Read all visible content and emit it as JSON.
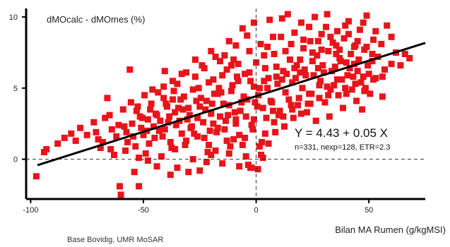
{
  "chart_data": {
    "type": "scatter",
    "ylabel": "dMOcalc - dMOmes (%)",
    "xlabel": "Bilan MA Rumen (g/kgMSI)",
    "equation": "Y = 4.43 + 0.05 X",
    "stats": "n=331, nexp=128, ETR=2.3",
    "source": "Base Bovidig, UMR MoSAR",
    "xlim": [
      -102,
      75
    ],
    "ylim": [
      -2.8,
      10.6
    ],
    "x_ticks": [
      -100,
      -50,
      0,
      50
    ],
    "x_tick_labels": [
      "-100",
      "-50",
      "0",
      "50"
    ],
    "y_ticks": [
      0,
      5,
      10
    ],
    "y_tick_labels": [
      "0",
      "5",
      "10"
    ],
    "reference_lines": {
      "x": 0,
      "y": 0
    },
    "regression": {
      "intercept": 4.43,
      "slope": 0.05,
      "x_range": [
        -97,
        75
      ]
    },
    "colors": {
      "points": "#e8141b",
      "regression": "#000000",
      "axes": "#000000"
    },
    "point_count_shown": 331,
    "points": [
      [
        -97.5,
        -1.2
      ],
      [
        -94,
        0.5
      ],
      [
        -93,
        0.7
      ],
      [
        -70,
        1.4
      ],
      [
        -66,
        4.3
      ],
      [
        -64,
        2.1
      ],
      [
        -62,
        1.6
      ],
      [
        -60,
        -2.5
      ],
      [
        -58,
        0.6
      ],
      [
        -57,
        1.2
      ],
      [
        -56,
        6.3
      ],
      [
        -55,
        2.5
      ],
      [
        -54,
        -0.9
      ],
      [
        -53,
        3.4
      ],
      [
        -52,
        -1.9
      ],
      [
        -51,
        2.2
      ],
      [
        -50,
        1.7
      ],
      [
        -49,
        0.4
      ],
      [
        -48,
        2.8
      ],
      [
        -47,
        3.5
      ],
      [
        -46,
        4.9
      ],
      [
        -45,
        1.5
      ],
      [
        -44,
        3.1
      ],
      [
        -43,
        2.0
      ],
      [
        -42,
        0.2
      ],
      [
        -41,
        5.1
      ],
      [
        -40,
        3.9
      ],
      [
        -39,
        2.6
      ],
      [
        -38,
        1.2
      ],
      [
        -37,
        4.2
      ],
      [
        -36,
        3.3
      ],
      [
        -35,
        5.3
      ],
      [
        -34,
        2.7
      ],
      [
        -33,
        1.8
      ],
      [
        -32,
        4.4
      ],
      [
        -31,
        6.1
      ],
      [
        -30,
        3.6
      ],
      [
        -29,
        2.2
      ],
      [
        -28,
        4.9
      ],
      [
        -27,
        5.8
      ],
      [
        -26,
        2.9
      ],
      [
        -25,
        3.7
      ],
      [
        -24,
        6.6
      ],
      [
        -23,
        1.5
      ],
      [
        -22,
        4.1
      ],
      [
        -21,
        5.4
      ],
      [
        -20,
        3.2
      ],
      [
        -19,
        2.5
      ],
      [
        -18,
        7.2
      ],
      [
        -17,
        4.6
      ],
      [
        -16,
        3.0
      ],
      [
        -15,
        5.9
      ],
      [
        -14,
        2.1
      ],
      [
        -13,
        6.3
      ],
      [
        -12,
        3.8
      ],
      [
        -11,
        4.8
      ],
      [
        -10,
        7.0
      ],
      [
        -9,
        2.8
      ],
      [
        -8,
        5.5
      ],
      [
        -7,
        3.4
      ],
      [
        -6,
        9.2
      ],
      [
        -5,
        6.0
      ],
      [
        -4,
        4.2
      ],
      [
        -3,
        7.6
      ],
      [
        -2,
        2.4
      ],
      [
        -1,
        5.1
      ],
      [
        0,
        6.8
      ],
      [
        1,
        4.5
      ],
      [
        2,
        8.1
      ],
      [
        3,
        3.6
      ],
      [
        4,
        6.4
      ],
      [
        5,
        5.0
      ],
      [
        6,
        9.8
      ],
      [
        7,
        4.0
      ],
      [
        8,
        7.4
      ],
      [
        9,
        5.8
      ],
      [
        10,
        3.1
      ],
      [
        11,
        8.6
      ],
      [
        12,
        6.2
      ],
      [
        13,
        4.7
      ],
      [
        14,
        10.2
      ],
      [
        15,
        7.0
      ],
      [
        16,
        5.4
      ],
      [
        17,
        8.9
      ],
      [
        18,
        6.6
      ],
      [
        19,
        4.3
      ],
      [
        20,
        9.6
      ],
      [
        21,
        7.8
      ],
      [
        22,
        5.9
      ],
      [
        23,
        3.9
      ],
      [
        24,
        8.3
      ],
      [
        25,
        6.9
      ],
      [
        26,
        10.0
      ],
      [
        27,
        7.3
      ],
      [
        28,
        5.2
      ],
      [
        29,
        8.8
      ],
      [
        30,
        6.1
      ],
      [
        31,
        9.3
      ],
      [
        32,
        7.6
      ],
      [
        33,
        4.9
      ],
      [
        34,
        8.2
      ],
      [
        35,
        6.5
      ],
      [
        36,
        9.0
      ],
      [
        37,
        7.1
      ],
      [
        38,
        5.6
      ],
      [
        39,
        8.5
      ],
      [
        40,
        6.8
      ],
      [
        41,
        9.7
      ],
      [
        42,
        7.4
      ],
      [
        43,
        5.8
      ],
      [
        44,
        8.0
      ],
      [
        45,
        6.2
      ],
      [
        46,
        9.1
      ],
      [
        47,
        3.5
      ],
      [
        48,
        7.7
      ],
      [
        49,
        10.1
      ],
      [
        50,
        6.0
      ],
      [
        52,
        8.4
      ],
      [
        54,
        7.2
      ],
      [
        56,
        4.4
      ],
      [
        58,
        9.4
      ],
      [
        60,
        6.7
      ],
      [
        64,
        6.6
      ],
      [
        68,
        7.1
      ],
      [
        -88,
        1.1
      ],
      [
        -85,
        1.5
      ],
      [
        -82,
        1.8
      ],
      [
        -80,
        1.3
      ],
      [
        -78,
        2.2
      ],
      [
        -75,
        1.7
      ],
      [
        -72,
        2.6
      ],
      [
        -69,
        0.8
      ],
      [
        -67,
        2.9
      ],
      [
        -65,
        3.1
      ],
      [
        -63,
        0.3
      ],
      [
        -61,
        2.4
      ],
      [
        -59,
        3.5
      ],
      [
        -57.5,
        1.9
      ],
      [
        -55.5,
        4.0
      ],
      [
        -53.5,
        0.9
      ],
      [
        -51.5,
        3.0
      ],
      [
        -49.5,
        4.5
      ],
      [
        -47.5,
        1.1
      ],
      [
        -45.5,
        2.3
      ],
      [
        -43.5,
        4.7
      ],
      [
        -41.5,
        1.6
      ],
      [
        -39.5,
        3.7
      ],
      [
        -37.5,
        0.8
      ],
      [
        -35.5,
        2.4
      ],
      [
        -33.5,
        4.2
      ],
      [
        -31.5,
        1.0
      ],
      [
        -29.5,
        3.1
      ],
      [
        -27.5,
        1.8
      ],
      [
        -25.5,
        5.0
      ],
      [
        -23.5,
        2.6
      ],
      [
        -21.5,
        0.5
      ],
      [
        -19.5,
        3.9
      ],
      [
        -17.5,
        1.9
      ],
      [
        -15.5,
        4.7
      ],
      [
        -13.5,
        2.7
      ],
      [
        -11.5,
        0.9
      ],
      [
        -9.5,
        3.3
      ],
      [
        -7.5,
        1.7
      ],
      [
        -5.5,
        4.4
      ],
      [
        -3.5,
        -0.4
      ],
      [
        -1.5,
        2.1
      ],
      [
        0.5,
        3.7
      ],
      [
        2.5,
        1.2
      ],
      [
        4.5,
        2.9
      ],
      [
        6.5,
        4.1
      ],
      [
        8.5,
        1.9
      ],
      [
        10.5,
        3.4
      ],
      [
        12.5,
        2.3
      ],
      [
        14.5,
        4.2
      ],
      [
        16.5,
        2.9
      ],
      [
        18.5,
        3.8
      ],
      [
        20.5,
        5.0
      ],
      [
        22.5,
        3.3
      ],
      [
        24.5,
        4.6
      ],
      [
        26.5,
        2.7
      ],
      [
        28.5,
        5.5
      ],
      [
        30.5,
        4.0
      ],
      [
        32.5,
        3.0
      ],
      [
        34.5,
        5.2
      ],
      [
        36.5,
        4.5
      ],
      [
        38.5,
        3.6
      ],
      [
        40.5,
        5.9
      ],
      [
        42.5,
        4.9
      ],
      [
        44.5,
        4.1
      ],
      [
        46.5,
        5.4
      ],
      [
        48.5,
        5.0
      ],
      [
        50.5,
        4.6
      ],
      [
        53,
        5.7
      ],
      [
        -60.5,
        -1.9
      ],
      [
        -35,
        -0.6
      ],
      [
        -25,
        -0.8
      ],
      [
        -15,
        -0.3
      ],
      [
        -12,
        0.4
      ],
      [
        -7.5,
        -0.5
      ],
      [
        -4.5,
        0.2
      ],
      [
        -2.5,
        -0.6
      ],
      [
        1.5,
        0.9
      ],
      [
        3,
        0.1
      ],
      [
        5.5,
        1.1
      ],
      [
        -28,
        0.0
      ],
      [
        -18,
        0.6
      ],
      [
        -22,
        -0.2
      ],
      [
        -44,
        -0.5
      ],
      [
        -38,
        -1.1
      ],
      [
        -30,
        -0.9
      ],
      [
        -20,
        0.3
      ],
      [
        -10,
        1.4
      ],
      [
        -6,
        1.0
      ],
      [
        -40.5,
        6.2
      ],
      [
        -33,
        6.0
      ],
      [
        -27,
        7.0
      ],
      [
        -20,
        7.6
      ],
      [
        -16,
        6.9
      ],
      [
        -12,
        8.3
      ],
      [
        -8,
        6.7
      ],
      [
        -4,
        8.7
      ],
      [
        -1,
        9.6
      ],
      [
        3.5,
        7.3
      ],
      [
        7.5,
        8.6
      ],
      [
        11.5,
        9.9
      ],
      [
        15.5,
        8.1
      ],
      [
        19.5,
        7.0
      ],
      [
        23.5,
        9.3
      ],
      [
        27.5,
        8.3
      ],
      [
        31.5,
        10.2
      ],
      [
        35.5,
        8.0
      ],
      [
        39.5,
        9.4
      ],
      [
        43.5,
        7.9
      ],
      [
        47.5,
        9.6
      ],
      [
        51.5,
        7.4
      ],
      [
        55.5,
        8.1
      ],
      [
        -50.5,
        2.9
      ],
      [
        -46.5,
        3.9
      ],
      [
        -42.5,
        2.7
      ],
      [
        -38.5,
        3.0
      ],
      [
        -34.5,
        3.6
      ],
      [
        -30.5,
        2.8
      ],
      [
        -26.5,
        4.1
      ],
      [
        -22.5,
        3.5
      ],
      [
        -18.5,
        4.6
      ],
      [
        -14.5,
        3.9
      ],
      [
        -10.5,
        5.2
      ],
      [
        -6.5,
        4.0
      ],
      [
        -2.5,
        5.5
      ],
      [
        1.5,
        5.0
      ],
      [
        5.5,
        5.7
      ],
      [
        9.5,
        5.3
      ],
      [
        13.5,
        6.0
      ],
      [
        17.5,
        5.7
      ],
      [
        21.5,
        6.3
      ],
      [
        25.5,
        5.9
      ],
      [
        29.5,
        6.6
      ],
      [
        33.5,
        6.2
      ],
      [
        37.5,
        6.9
      ],
      [
        41.5,
        6.4
      ],
      [
        45.5,
        7.0
      ],
      [
        49.5,
        6.6
      ],
      [
        -58.5,
        2.3
      ],
      [
        -54.5,
        1.6
      ],
      [
        -52.5,
        3.7
      ],
      [
        -48.5,
        2.0
      ],
      [
        -44.5,
        3.2
      ],
      [
        -40.5,
        2.1
      ],
      [
        -36.5,
        4.8
      ],
      [
        -32.5,
        3.5
      ],
      [
        -28.5,
        2.3
      ],
      [
        -24.5,
        4.3
      ],
      [
        -20.5,
        2.0
      ],
      [
        -16.5,
        5.0
      ],
      [
        -12.5,
        3.1
      ],
      [
        -8.5,
        5.8
      ],
      [
        -4.5,
        3.0
      ],
      [
        -0.5,
        4.0
      ],
      [
        3.5,
        5.5
      ],
      [
        7.5,
        3.4
      ],
      [
        11.5,
        5.6
      ],
      [
        15.5,
        3.8
      ],
      [
        19.5,
        6.1
      ],
      [
        23.5,
        4.6
      ],
      [
        27.5,
        6.4
      ],
      [
        31.5,
        5.1
      ],
      [
        35.5,
        7.4
      ],
      [
        39.5,
        5.0
      ],
      [
        43.5,
        6.7
      ],
      [
        47.5,
        5.8
      ],
      [
        51.5,
        6.9
      ],
      [
        57,
        6.3
      ],
      [
        62,
        7.5
      ],
      [
        -2,
        -0.6
      ],
      [
        0.8,
        -0.7
      ],
      [
        2.2,
        0.3
      ],
      [
        -64.5,
        0.7
      ],
      [
        -68,
        1.2
      ],
      [
        -71,
        1.9
      ],
      [
        -52,
        0.1
      ],
      [
        -48,
        -0.1
      ],
      [
        -36,
        0.7
      ],
      [
        -31,
        1.3
      ],
      [
        -26,
        1.6
      ],
      [
        -21,
        1.0
      ],
      [
        -17,
        2.2
      ],
      [
        -13,
        1.3
      ],
      [
        -9,
        2.5
      ],
      [
        -5,
        1.5
      ],
      [
        -1,
        2.8
      ],
      [
        4,
        1.8
      ],
      [
        8,
        2.6
      ],
      [
        12,
        3.0
      ],
      [
        16,
        3.5
      ],
      [
        20,
        3.2
      ],
      [
        24,
        3.9
      ],
      [
        28,
        4.3
      ],
      [
        32,
        4.5
      ],
      [
        36,
        5.6
      ],
      [
        40,
        4.6
      ],
      [
        44,
        5.3
      ],
      [
        48,
        4.8
      ],
      [
        52,
        5.6
      ],
      [
        56,
        5.8
      ],
      [
        60,
        8.6
      ],
      [
        66,
        7.4
      ],
      [
        -41,
        4.3
      ],
      [
        -37,
        5.5
      ],
      [
        -23,
        6.4
      ],
      [
        -19,
        5.6
      ],
      [
        -11,
        6.6
      ],
      [
        -3,
        6.1
      ],
      [
        5,
        7.9
      ],
      [
        9,
        6.5
      ],
      [
        13,
        7.6
      ],
      [
        17,
        6.4
      ],
      [
        21,
        8.4
      ],
      [
        25,
        7.5
      ],
      [
        29,
        7.7
      ],
      [
        33,
        8.6
      ],
      [
        37,
        7.7
      ],
      [
        41,
        8.8
      ],
      [
        45,
        8.3
      ],
      [
        49,
        7.9
      ],
      [
        53,
        9.0
      ],
      [
        -9,
        8.0
      ],
      [
        -14,
        7.3
      ]
    ]
  }
}
